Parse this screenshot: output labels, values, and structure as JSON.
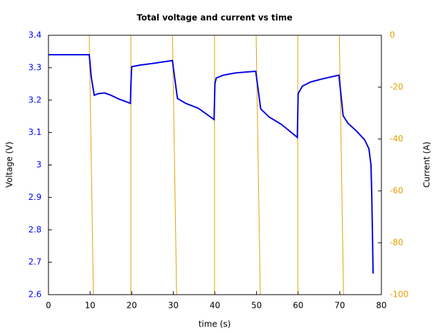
{
  "chart_data": {
    "type": "line",
    "title": "Total voltage and current vs time",
    "xlabel": "time (s)",
    "ylabel": "Voltage (V)",
    "y2label": "Current (A)",
    "xlim": [
      0,
      80
    ],
    "xticks": [
      0,
      10,
      20,
      30,
      40,
      50,
      60,
      70,
      80
    ],
    "ylim": [
      2.6,
      3.4
    ],
    "yticks": [
      2.6,
      2.7,
      2.8,
      2.9,
      3,
      3.1,
      3.2,
      3.3,
      3.4
    ],
    "y2lim": [
      -100,
      0
    ],
    "y2ticks": [
      -100,
      -80,
      -60,
      -40,
      -20,
      0
    ],
    "ytick_color": "#0000ff",
    "y2tick_color": "#e0a000",
    "series": [
      {
        "color": "#e0a000",
        "axis": "y2",
        "x": [
          0,
          9.8,
          10.8,
          19.8,
          19.8,
          29.8,
          30.8,
          39.9,
          39.9,
          49.9,
          50.9,
          59.9,
          59.9,
          69.9,
          70.9,
          78
        ],
        "values": [
          0,
          0,
          -100,
          -100,
          0,
          0,
          -100,
          -100,
          0,
          0,
          -100,
          -100,
          0,
          0,
          -100,
          -100
        ]
      },
      {
        "color": "#0000e0",
        "axis": "y",
        "x": [
          0,
          9.8,
          10.3,
          11,
          12,
          13.5,
          15,
          17,
          19.7,
          19.8,
          20,
          22,
          25,
          29.8,
          30,
          31,
          33,
          36,
          39.8,
          40,
          40.3,
          42,
          45,
          49.8,
          51,
          53,
          56,
          59.8,
          60,
          61,
          63,
          66,
          69.8,
          70.8,
          72,
          74,
          76,
          77,
          77.5,
          77.7,
          77.9,
          78
        ],
        "values": [
          3.34,
          3.34,
          3.27,
          3.215,
          3.22,
          3.222,
          3.215,
          3.203,
          3.19,
          3.243,
          3.303,
          3.308,
          3.313,
          3.322,
          3.3,
          3.205,
          3.19,
          3.175,
          3.14,
          3.25,
          3.268,
          3.277,
          3.284,
          3.289,
          3.173,
          3.148,
          3.125,
          3.085,
          3.22,
          3.243,
          3.256,
          3.266,
          3.277,
          3.152,
          3.128,
          3.105,
          3.077,
          3.05,
          3.0,
          2.9,
          2.75,
          2.665
        ]
      }
    ]
  }
}
